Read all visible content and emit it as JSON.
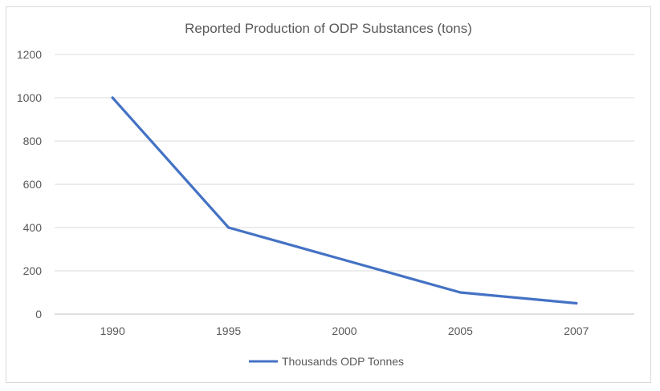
{
  "chart_data": {
    "type": "line",
    "title": "Reported Production of ODP Substances (tons)",
    "xlabel": "",
    "ylabel": "",
    "categories": [
      "1990",
      "1995",
      "2000",
      "2005",
      "2007"
    ],
    "series": [
      {
        "name": "Thousands ODP Tonnes",
        "values": [
          1000,
          400,
          250,
          100,
          50
        ],
        "color": "#4472c4"
      }
    ],
    "ylim": [
      0,
      1200
    ],
    "yticks": [
      "0",
      "200",
      "400",
      "600",
      "800",
      "1000",
      "1200"
    ],
    "grid": true,
    "legend": "bottom"
  }
}
